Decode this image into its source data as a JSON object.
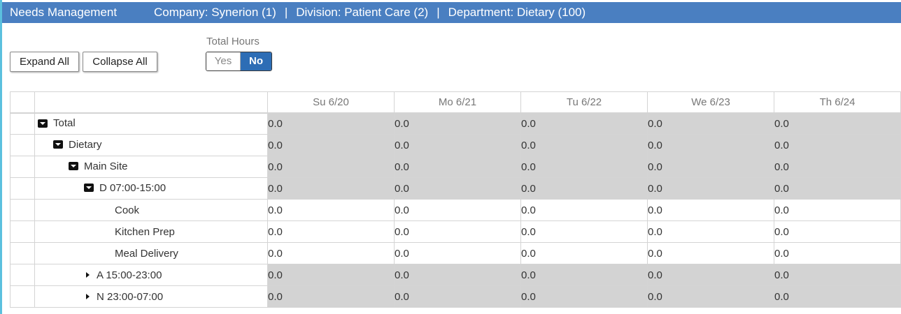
{
  "header": {
    "title": "Needs Management",
    "company": "Company: Synerion (1)",
    "division": "Division: Patient Care (2)",
    "department": "Department: Dietary (100)",
    "separator": "|"
  },
  "toolbar": {
    "expand_label": "Expand All",
    "collapse_label": "Collapse All",
    "total_hours_label": "Total Hours",
    "yes_label": "Yes",
    "no_label": "No",
    "selected": "No"
  },
  "grid": {
    "columns": [
      "Su 6/20",
      "Mo 6/21",
      "Tu 6/22",
      "We 6/23",
      "Th 6/24"
    ],
    "rows": [
      {
        "label": "Total",
        "level": 0,
        "icon": "collapse-box-icon",
        "values": [
          "0.0",
          "0.0",
          "0.0",
          "0.0",
          "0.0"
        ]
      },
      {
        "label": "Dietary",
        "level": 1,
        "icon": "collapse-box-icon",
        "values": [
          "0.0",
          "0.0",
          "0.0",
          "0.0",
          "0.0"
        ]
      },
      {
        "label": "Main Site",
        "level": 2,
        "icon": "collapse-box-icon",
        "values": [
          "0.0",
          "0.0",
          "0.0",
          "0.0",
          "0.0"
        ]
      },
      {
        "label": "D 07:00-15:00",
        "level": 3,
        "icon": "collapse-box-icon",
        "values": [
          "0.0",
          "0.0",
          "0.0",
          "0.0",
          "0.0"
        ]
      },
      {
        "label": "Cook",
        "level": 4,
        "icon": "",
        "values": [
          "0.0",
          "0.0",
          "0.0",
          "0.0",
          "0.0"
        ]
      },
      {
        "label": "Kitchen Prep",
        "level": 4,
        "icon": "",
        "values": [
          "0.0",
          "0.0",
          "0.0",
          "0.0",
          "0.0"
        ]
      },
      {
        "label": "Meal Delivery",
        "level": 4,
        "icon": "",
        "values": [
          "0.0",
          "0.0",
          "0.0",
          "0.0",
          "0.0"
        ]
      },
      {
        "label": "A 15:00-23:00",
        "level": 3,
        "icon": "expand-triangle-icon",
        "values": [
          "0.0",
          "0.0",
          "0.0",
          "0.0",
          "0.0"
        ]
      },
      {
        "label": "N 23:00-07:00",
        "level": 3,
        "icon": "expand-triangle-icon",
        "values": [
          "0.0",
          "0.0",
          "0.0",
          "0.0",
          "0.0"
        ]
      }
    ]
  }
}
